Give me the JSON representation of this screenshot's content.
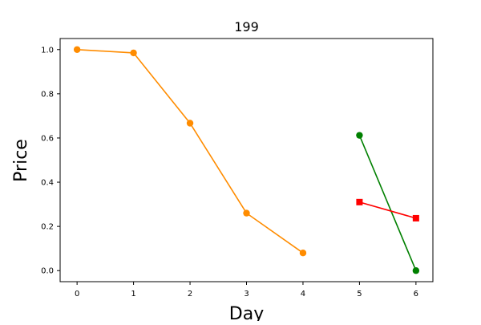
{
  "chart_data": {
    "type": "line",
    "title": "199",
    "xlabel": "Day",
    "ylabel": "Price",
    "xlim": [
      -0.3,
      6.3
    ],
    "ylim": [
      -0.05,
      1.05
    ],
    "xticks": [
      0,
      1,
      2,
      3,
      4,
      5,
      6
    ],
    "yticks": [
      0.0,
      0.2,
      0.4,
      0.6,
      0.8,
      1.0
    ],
    "ytick_labels": [
      "0.0",
      "0.2",
      "0.4",
      "0.6",
      "0.8",
      "1.0"
    ],
    "grid": false,
    "legend": false,
    "series": [
      {
        "color": "#ff8c00",
        "marker": "circle",
        "x": [
          0,
          1,
          2,
          3,
          4
        ],
        "y": [
          1.0,
          0.985,
          0.667,
          0.26,
          0.08
        ]
      },
      {
        "color": "#008000",
        "marker": "circle",
        "x": [
          5,
          6
        ],
        "y": [
          0.612,
          0.0
        ]
      },
      {
        "color": "#ff0000",
        "marker": "square",
        "x": [
          5,
          6
        ],
        "y": [
          0.31,
          0.237
        ]
      }
    ]
  }
}
